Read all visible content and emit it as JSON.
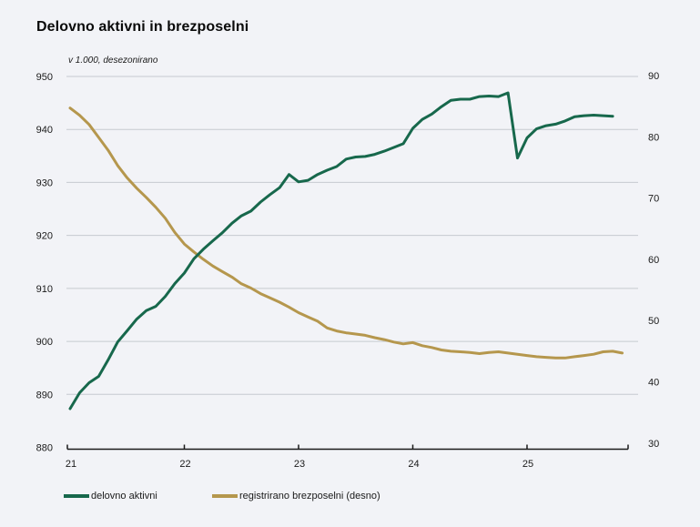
{
  "page": {
    "background_color": "#f2f3f7"
  },
  "chart_data": {
    "type": "line",
    "title": "Delovno aktivni in brezposelni",
    "subtitle_note": "v 1.000, desezonirano",
    "x_frequency": "monthly",
    "x_start": "2021-01",
    "x_tick_labels": [
      "21",
      "22",
      "23",
      "24",
      "25"
    ],
    "x_tick_month_indices": [
      0,
      12,
      24,
      36,
      48
    ],
    "left_axis": {
      "min": 880,
      "max": 950,
      "ticks": [
        880,
        890,
        900,
        910,
        920,
        930,
        940,
        950
      ]
    },
    "right_axis": {
      "min": 30,
      "max": 90,
      "ticks": [
        30,
        40,
        50,
        60,
        70,
        80,
        90
      ]
    },
    "grid": true,
    "legend_position": "bottom",
    "series": [
      {
        "name": "delovno aktivni",
        "axis": "left",
        "color": "#17684c",
        "values": [
          887.3,
          890.3,
          892.2,
          893.4,
          896.5,
          899.9,
          902.0,
          904.2,
          905.8,
          906.6,
          908.5,
          910.9,
          912.9,
          915.6,
          917.4,
          919.0,
          920.5,
          922.3,
          923.7,
          924.6,
          926.3,
          927.7,
          929.0,
          931.5,
          930.1,
          930.4,
          931.5,
          932.3,
          933.0,
          934.4,
          934.8,
          934.9,
          935.3,
          935.9,
          936.6,
          937.3,
          940.2,
          941.9,
          942.9,
          944.3,
          945.5,
          945.7,
          945.7,
          946.2,
          946.3,
          946.2,
          946.9,
          934.6,
          938.4,
          940.1,
          940.7,
          941.0,
          941.6,
          942.4,
          942.6,
          942.7,
          942.6,
          942.5
        ]
      },
      {
        "name": "registrirano brezposelni (desno)",
        "axis": "right",
        "color": "#b5974d",
        "values": [
          84.7,
          83.5,
          82.0,
          79.9,
          77.8,
          75.3,
          73.3,
          71.6,
          70.1,
          68.5,
          66.7,
          64.4,
          62.5,
          61.2,
          60.0,
          58.9,
          58.0,
          57.1,
          56.0,
          55.3,
          54.4,
          53.7,
          53.0,
          52.2,
          51.3,
          50.6,
          49.9,
          48.8,
          48.3,
          48.0,
          47.8,
          47.6,
          47.2,
          46.9,
          46.5,
          46.2,
          46.4,
          45.9,
          45.6,
          45.2,
          45.0,
          44.9,
          44.8,
          44.6,
          44.8,
          44.9,
          44.7,
          44.5,
          44.3,
          44.1,
          44.0,
          43.9,
          43.9,
          44.1,
          44.3,
          44.5,
          44.9,
          45.0,
          44.7
        ]
      }
    ]
  },
  "colors": {
    "grid": "#c6cad0",
    "axis": "#1a1a1a",
    "text": "#1a1a1a"
  }
}
